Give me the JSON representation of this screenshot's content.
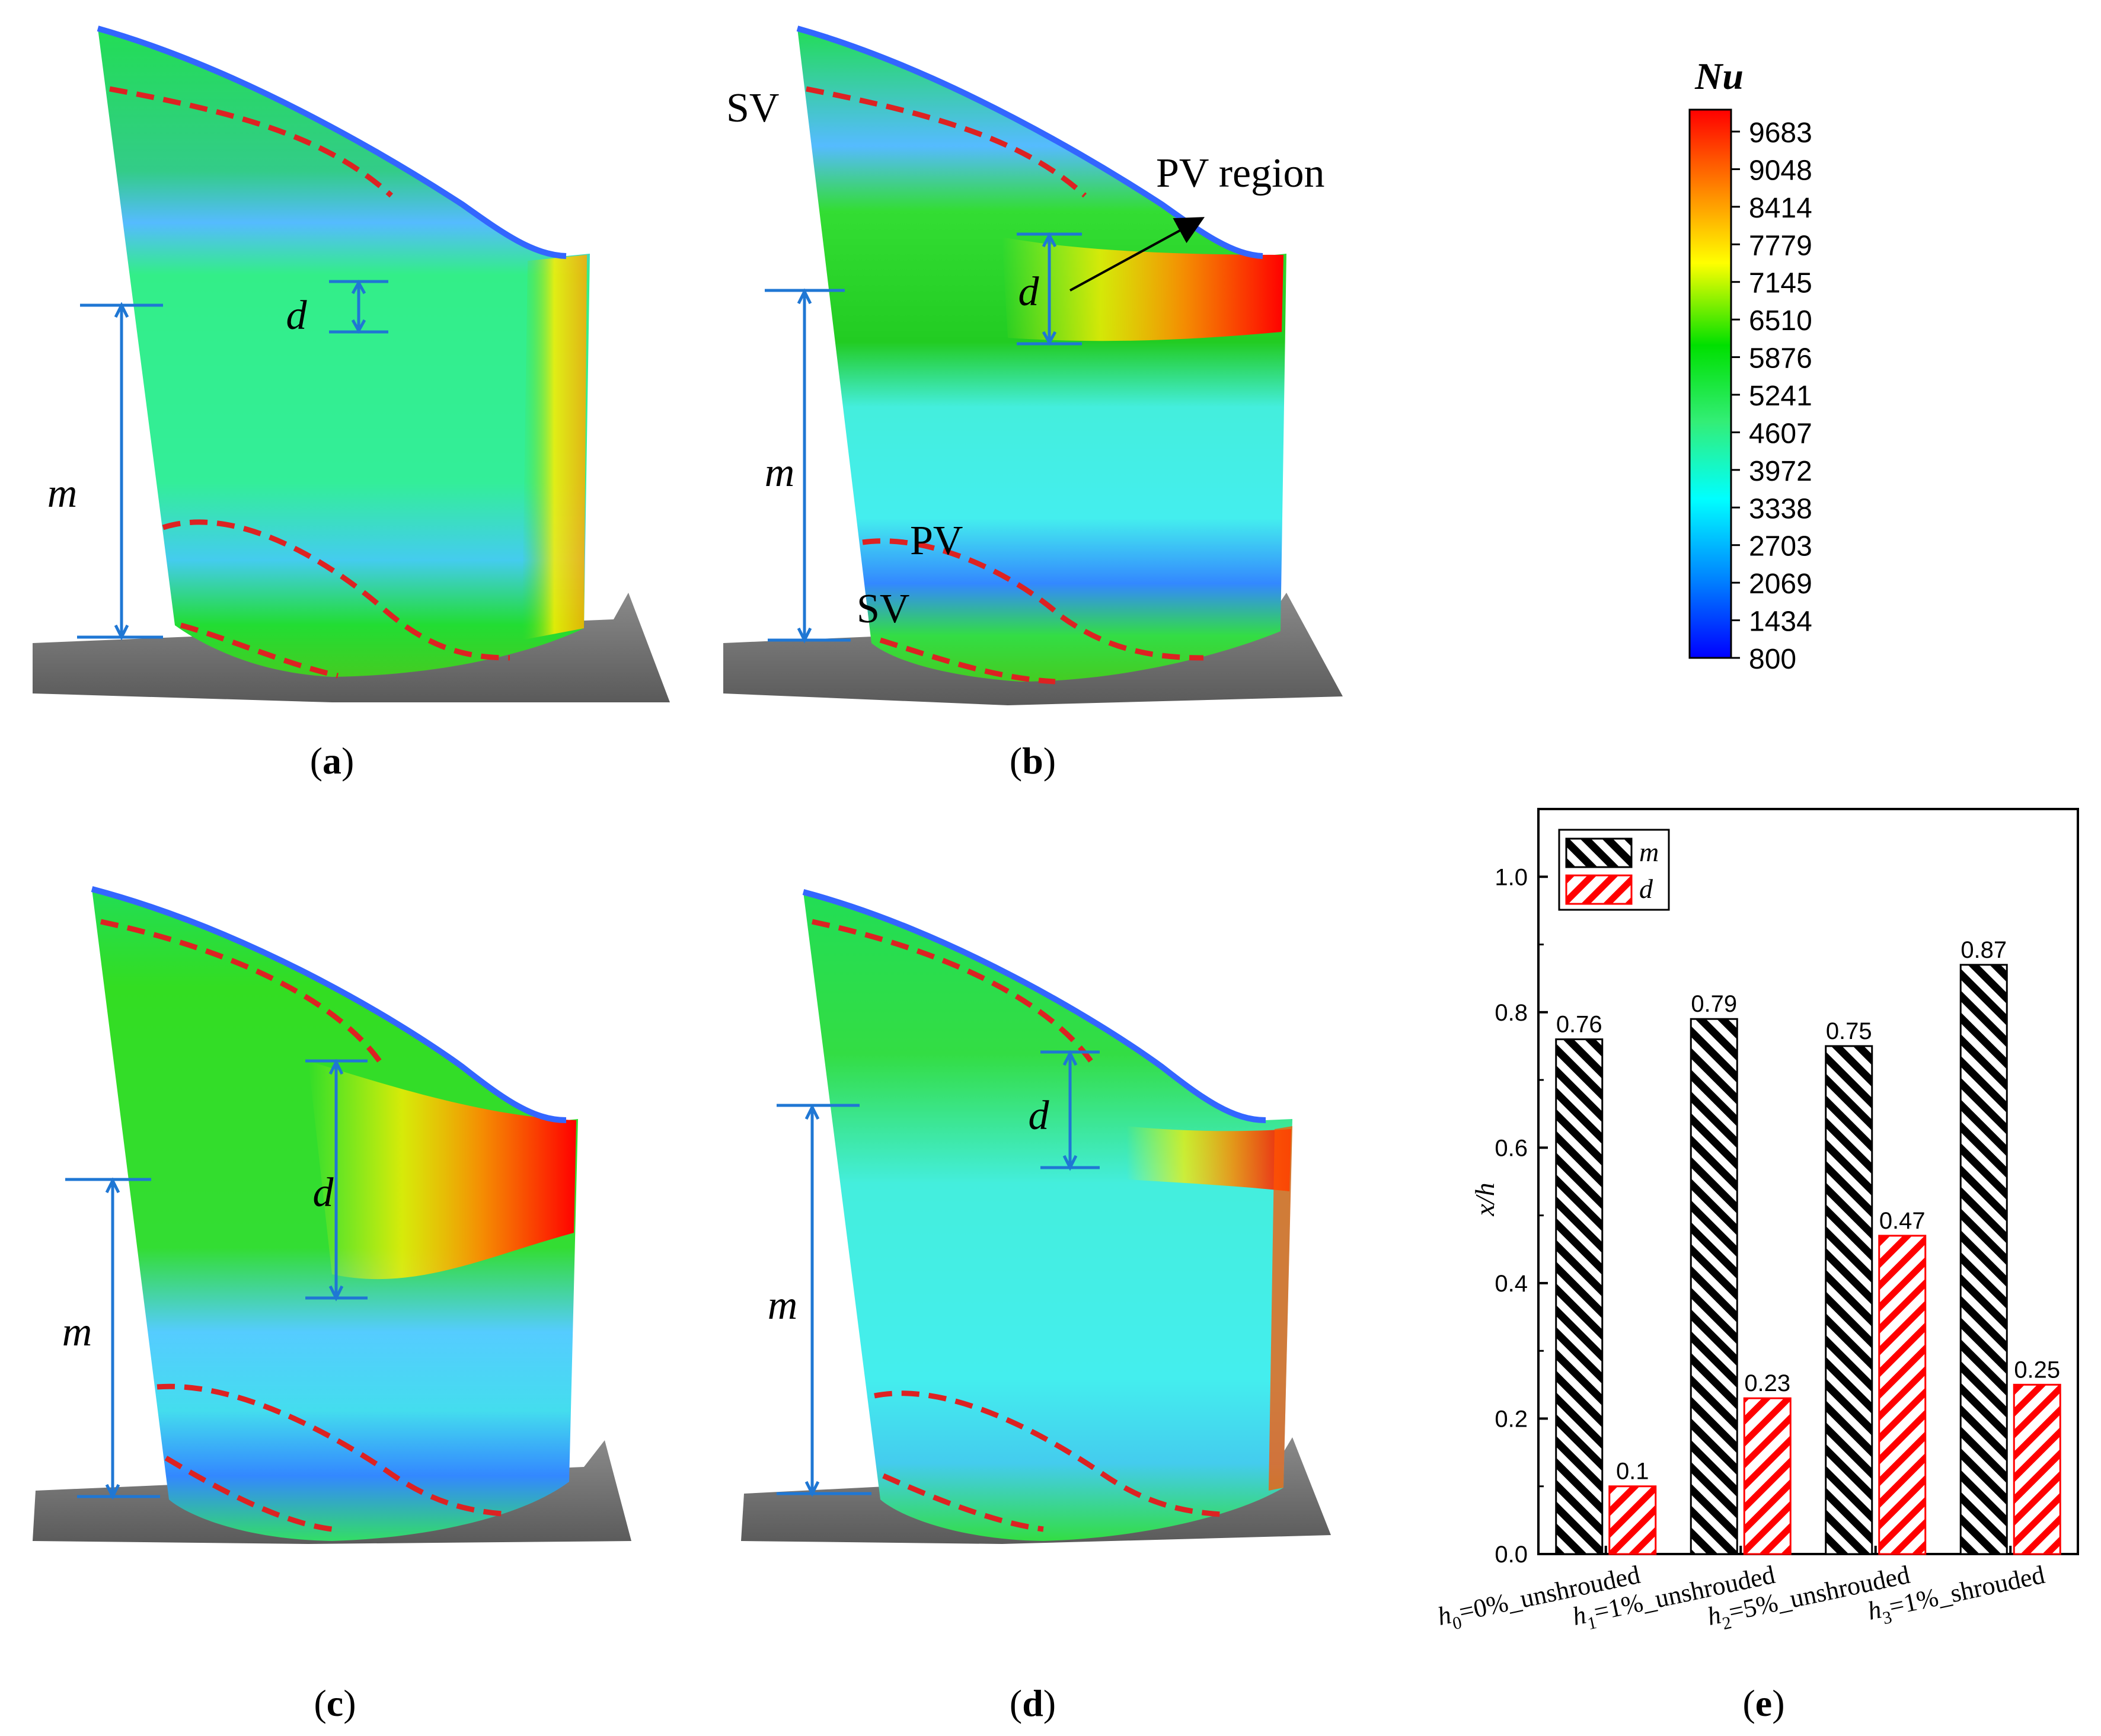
{
  "panels": {
    "a": {
      "label": "(a)",
      "letter": "a",
      "m": "m",
      "d": "d"
    },
    "b": {
      "label": "(b)",
      "letter": "b",
      "m": "m",
      "d": "d",
      "sv_top": "SV",
      "sv_bottom": "SV",
      "pv": "PV",
      "pv_region": "PV region"
    },
    "c": {
      "label": "(c)",
      "letter": "c",
      "m": "m",
      "d": "d"
    },
    "d": {
      "label": "(d)",
      "letter": "d",
      "m": "m",
      "d": "d"
    },
    "e": {
      "label": "(e)",
      "letter": "e"
    }
  },
  "colorbar": {
    "title": "Nu",
    "ticks": [
      "9683",
      "9048",
      "8414",
      "7779",
      "7145",
      "6510",
      "5876",
      "5241",
      "4607",
      "3972",
      "3338",
      "2703",
      "2069",
      "1434",
      "800"
    ]
  },
  "colors": {
    "red": "#ff0000",
    "orange": "#ff8000",
    "yellow": "#ffff00",
    "green": "#00dd00",
    "cyan": "#00ffff",
    "blue": "#0033ff",
    "dashed": "#dd2222",
    "annot": "#1f77d4"
  },
  "chart_data": {
    "type": "bar",
    "categories": [
      {
        "sym": "h",
        "sub": "0",
        "rest": "=0%_unshrouded"
      },
      {
        "sym": "h",
        "sub": "1",
        "rest": "=1%_unshrouded"
      },
      {
        "sym": "h",
        "sub": "2",
        "rest": "=5%_unshrouded"
      },
      {
        "sym": "h",
        "sub": "3",
        "rest": "=1%_shrouded"
      }
    ],
    "series": [
      {
        "name": "m",
        "values": [
          0.76,
          0.79,
          0.75,
          0.87
        ],
        "labels": [
          "0.76",
          "0.79",
          "0.75",
          "0.87"
        ],
        "color": "#000000"
      },
      {
        "name": "d",
        "values": [
          0.1,
          0.23,
          0.47,
          0.25
        ],
        "labels": [
          "0.1",
          "0.23",
          "0.47",
          "0.25"
        ],
        "color": "#ff0000"
      }
    ],
    "ylabel": "x/h",
    "ylim": [
      0.0,
      1.1
    ],
    "yticks": [
      0.0,
      0.2,
      0.4,
      0.6,
      0.8,
      1.0
    ],
    "ytick_labels": [
      "0.0",
      "0.2",
      "0.4",
      "0.6",
      "0.8",
      "1.0"
    ],
    "legend": "top-left"
  }
}
